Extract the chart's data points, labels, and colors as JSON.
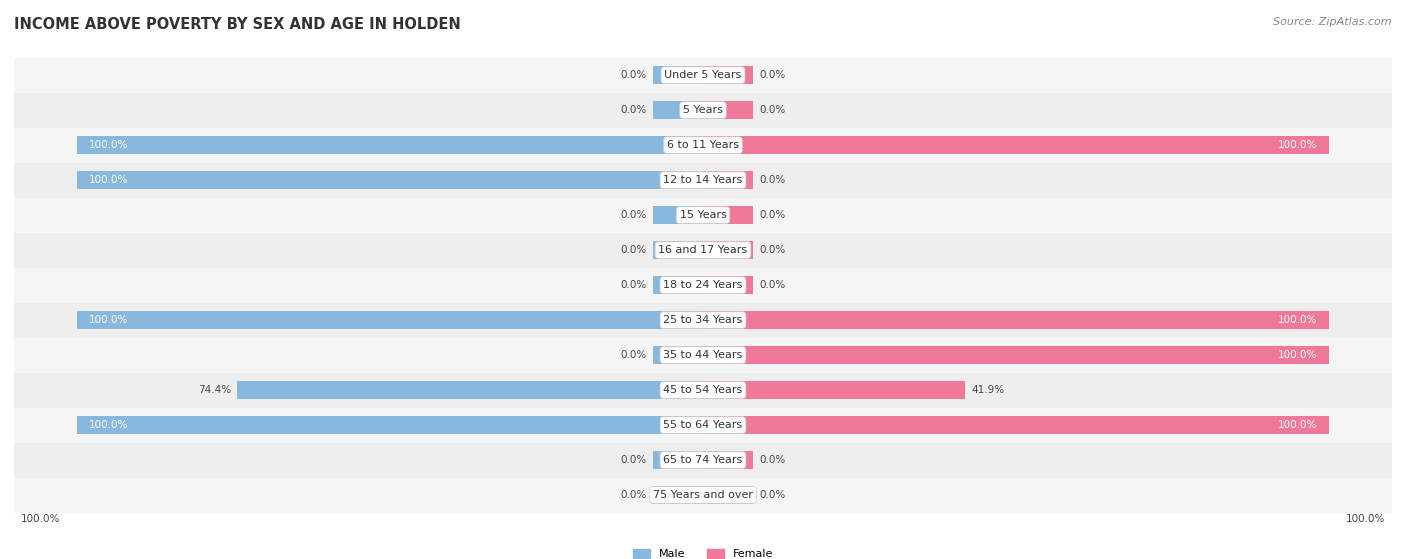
{
  "title": "INCOME ABOVE POVERTY BY SEX AND AGE IN HOLDEN",
  "source": "Source: ZipAtlas.com",
  "categories": [
    "Under 5 Years",
    "5 Years",
    "6 to 11 Years",
    "12 to 14 Years",
    "15 Years",
    "16 and 17 Years",
    "18 to 24 Years",
    "25 to 34 Years",
    "35 to 44 Years",
    "45 to 54 Years",
    "55 to 64 Years",
    "65 to 74 Years",
    "75 Years and over"
  ],
  "male": [
    0.0,
    0.0,
    100.0,
    100.0,
    0.0,
    0.0,
    0.0,
    100.0,
    0.0,
    74.4,
    100.0,
    0.0,
    0.0
  ],
  "female": [
    0.0,
    0.0,
    100.0,
    0.0,
    0.0,
    0.0,
    0.0,
    100.0,
    100.0,
    41.9,
    100.0,
    0.0,
    0.0
  ],
  "male_color": "#89b8de",
  "female_color": "#f07898",
  "male_label": "Male",
  "female_label": "Female",
  "bar_height": 0.52,
  "min_stub": 8.0,
  "max_val": 100.0,
  "title_fontsize": 10.5,
  "label_fontsize": 8.0,
  "value_fontsize": 7.5,
  "source_fontsize": 8,
  "row_colors": [
    "#f5f5f5",
    "#eeeeee"
  ]
}
